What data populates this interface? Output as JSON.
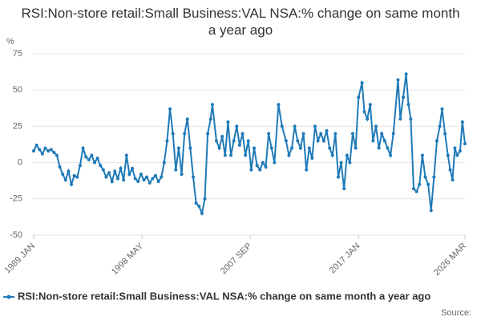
{
  "chart_data": {
    "type": "line",
    "title": "RSI:Non-store retail:Small Business:VAL NSA:% change on same month a year ago",
    "y_label": "%",
    "source": "Source:",
    "xlim": [
      1989.0,
      2026.17
    ],
    "xticks": [
      {
        "value": 1989.0,
        "label": "1989 JAN"
      },
      {
        "value": 1998.33,
        "label": "1998 MAY"
      },
      {
        "value": 2007.67,
        "label": "2007 SEP"
      },
      {
        "value": 2017.0,
        "label": "2017 JAN"
      },
      {
        "value": 2026.17,
        "label": "2026 MAR"
      }
    ],
    "ylim": [
      -50,
      75
    ],
    "yticks": [
      -50,
      -25,
      0,
      25,
      50,
      75
    ],
    "grid": true,
    "legend": "bottom",
    "x": [
      1989.0,
      1989.25,
      1989.5,
      1989.75,
      1990.0,
      1990.25,
      1990.5,
      1990.75,
      1991.0,
      1991.25,
      1991.5,
      1991.75,
      1992.0,
      1992.25,
      1992.5,
      1992.75,
      1993.0,
      1993.25,
      1993.5,
      1993.75,
      1994.0,
      1994.25,
      1994.5,
      1994.75,
      1995.0,
      1995.25,
      1995.5,
      1995.75,
      1996.0,
      1996.25,
      1996.5,
      1996.75,
      1997.0,
      1997.25,
      1997.5,
      1997.75,
      1998.0,
      1998.25,
      1998.5,
      1998.75,
      1999.0,
      1999.25,
      1999.5,
      1999.75,
      2000.0,
      2000.25,
      2000.5,
      2000.75,
      2001.0,
      2001.25,
      2001.5,
      2001.75,
      2002.0,
      2002.25,
      2002.5,
      2002.75,
      2003.0,
      2003.25,
      2003.5,
      2003.75,
      2004.0,
      2004.25,
      2004.4,
      2004.75,
      2005.0,
      2005.25,
      2005.5,
      2005.75,
      2006.0,
      2006.25,
      2006.5,
      2006.75,
      2007.0,
      2007.25,
      2007.5,
      2007.75,
      2008.0,
      2008.25,
      2008.5,
      2008.75,
      2009.0,
      2009.25,
      2009.5,
      2009.75,
      2010.1,
      2010.4,
      2010.75,
      2011.0,
      2011.25,
      2011.5,
      2011.75,
      2012.0,
      2012.25,
      2012.5,
      2012.75,
      2013.0,
      2013.25,
      2013.5,
      2013.75,
      2014.0,
      2014.25,
      2014.5,
      2014.75,
      2015.0,
      2015.25,
      2015.5,
      2015.75,
      2016.0,
      2016.25,
      2016.5,
      2016.75,
      2017.0,
      2017.3,
      2017.5,
      2017.75,
      2018.0,
      2018.25,
      2018.5,
      2018.75,
      2019.0,
      2019.25,
      2019.5,
      2019.75,
      2020.0,
      2020.4,
      2020.6,
      2020.85,
      2021.1,
      2021.3,
      2021.5,
      2021.75,
      2022.0,
      2022.25,
      2022.5,
      2022.75,
      2023.0,
      2023.25,
      2023.5,
      2023.75,
      2024.0,
      2024.2,
      2024.45,
      2024.7,
      2024.9,
      2025.1,
      2025.3,
      2025.5,
      2025.75,
      2025.95,
      2026.17
    ],
    "series": [
      {
        "name": "RSI:Non-store retail:Small Business:VAL NSA:% change on same month a year ago",
        "color": "#1f7ab8",
        "values": [
          8,
          12,
          9,
          6,
          10,
          8,
          9,
          7,
          5,
          -3,
          -8,
          -12,
          -6,
          -15,
          -9,
          -10,
          -2,
          10,
          4,
          2,
          5,
          0,
          3,
          -2,
          -5,
          -10,
          -7,
          -13,
          -6,
          -11,
          -4,
          -12,
          5,
          -8,
          -4,
          -11,
          -13,
          -8,
          -12,
          -10,
          -14,
          -11,
          -9,
          -13,
          -10,
          0,
          15,
          37,
          20,
          -5,
          10,
          -8,
          20,
          30,
          10,
          -10,
          -28,
          -30,
          -35,
          -25,
          20,
          30,
          40,
          15,
          10,
          18,
          5,
          28,
          5,
          15,
          25,
          12,
          20,
          5,
          15,
          -5,
          10,
          -2,
          -5,
          0,
          -3,
          20,
          10,
          0,
          40,
          25,
          15,
          5,
          10,
          25,
          15,
          10,
          20,
          -5,
          10,
          3,
          25,
          15,
          20,
          15,
          22,
          10,
          5,
          20,
          -10,
          0,
          -18,
          5,
          0,
          20,
          10,
          45,
          55,
          35,
          30,
          40,
          15,
          25,
          10,
          20,
          15,
          10,
          5,
          20,
          57,
          30,
          45,
          61,
          40,
          30,
          -18,
          -20,
          -15,
          5,
          -10,
          -15,
          -33,
          -10,
          15,
          25,
          37,
          20,
          5,
          -5,
          -12,
          10,
          5,
          8,
          28,
          13
        ]
      }
    ]
  }
}
